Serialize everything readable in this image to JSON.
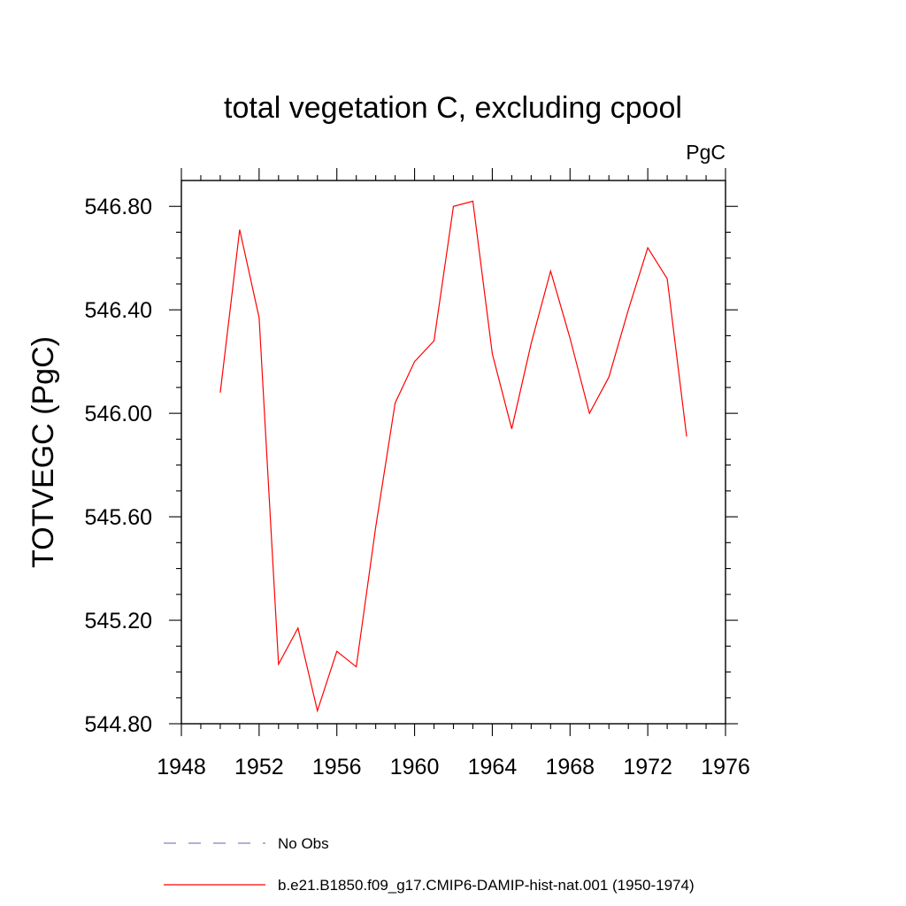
{
  "chart_data": {
    "type": "line",
    "title": "total vegetation C, excluding cpool",
    "units": "PgC",
    "xlabel": "",
    "ylabel": "TOTVEGC  (PgC)",
    "xlim": [
      1948,
      1976
    ],
    "ylim": [
      544.8,
      546.9
    ],
    "x_ticks": [
      1948,
      1952,
      1956,
      1960,
      1964,
      1968,
      1972,
      1976
    ],
    "x_tick_labels": [
      "1948",
      "1952",
      "1956",
      "1960",
      "1964",
      "1968",
      "1972",
      "1976"
    ],
    "y_ticks": [
      544.8,
      545.2,
      545.6,
      546.0,
      546.4,
      546.8
    ],
    "y_tick_labels": [
      "544.80",
      "545.20",
      "545.60",
      "546.00",
      "546.40",
      "546.80"
    ],
    "grid": false,
    "legend_placement": "bottom",
    "series": [
      {
        "name": "b.e21.B1850.f09_g17.CMIP6-DAMIP-hist-nat.001 (1950-1974)",
        "color": "#ff0000",
        "style": "solid",
        "x": [
          1950,
          1951,
          1952,
          1953,
          1954,
          1955,
          1956,
          1957,
          1958,
          1959,
          1960,
          1961,
          1962,
          1963,
          1964,
          1965,
          1966,
          1967,
          1968,
          1969,
          1970,
          1971,
          1972,
          1973,
          1974
        ],
        "values": [
          546.08,
          546.71,
          546.37,
          545.03,
          545.17,
          544.85,
          545.08,
          545.02,
          545.56,
          546.04,
          546.2,
          546.28,
          546.8,
          546.82,
          546.23,
          545.94,
          546.27,
          546.55,
          546.29,
          546.0,
          546.14,
          546.4,
          546.64,
          546.52,
          545.91
        ]
      },
      {
        "name": "No Obs",
        "color": "#8080c0",
        "style": "dashed",
        "x": [],
        "values": []
      }
    ]
  }
}
